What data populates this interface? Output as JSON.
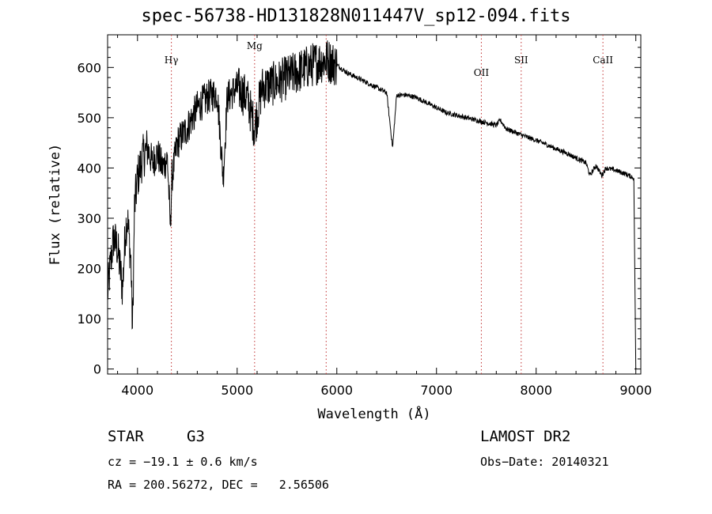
{
  "chart_data": {
    "type": "line",
    "title": "spec-56738-HD131828N011447V_sp12-094.fits",
    "xlabel": "Wavelength (Å)",
    "ylabel": "Flux (relative)",
    "xlim": [
      3700,
      9050
    ],
    "ylim": [
      -10,
      665
    ],
    "xticks": [
      4000,
      5000,
      6000,
      7000,
      8000,
      9000
    ],
    "yticks": [
      0,
      100,
      200,
      300,
      400,
      500,
      600
    ],
    "grid": false,
    "lines": [
      {
        "label": "Hγ",
        "x": 4340
      },
      {
        "label": "Mg",
        "x": 5175
      },
      {
        "label": "",
        "x": 5893
      },
      {
        "label": "OII",
        "x": 7450
      },
      {
        "label": "SII",
        "x": 7850
      },
      {
        "label": "CaII",
        "x": 8670
      }
    ],
    "series": [
      {
        "x": [
          3700,
          3730,
          3760,
          3800,
          3850,
          3880,
          3900,
          3935,
          3950,
          3970,
          4000,
          4050,
          4100,
          4150,
          4200,
          4250,
          4300,
          4330,
          4345,
          4400,
          4500,
          4600,
          4700,
          4800,
          4860,
          4900,
          5000,
          5100,
          5175,
          5250,
          5400,
          5500,
          5600,
          5700,
          5800,
          5900,
          6000,
          6100,
          6200,
          6300,
          6400,
          6500,
          6560,
          6600,
          6700,
          6800,
          6900,
          7000,
          7100,
          7200,
          7300,
          7400,
          7500,
          7600,
          7640,
          7700,
          7800,
          7900,
          8000,
          8100,
          8200,
          8300,
          8400,
          8500,
          8540,
          8600,
          8660,
          8700,
          8800,
          8900,
          8980,
          9000
        ],
        "y": [
          150,
          210,
          260,
          240,
          160,
          280,
          300,
          210,
          70,
          320,
          380,
          420,
          440,
          410,
          430,
          400,
          420,
          280,
          380,
          450,
          480,
          520,
          540,
          550,
          380,
          540,
          560,
          540,
          480,
          560,
          570,
          580,
          590,
          600,
          610,
          615,
          605,
          590,
          580,
          570,
          560,
          550,
          440,
          545,
          545,
          540,
          530,
          520,
          510,
          505,
          500,
          495,
          490,
          485,
          495,
          478,
          470,
          462,
          455,
          447,
          438,
          430,
          420,
          410,
          385,
          405,
          385,
          400,
          395,
          388,
          380,
          0
        ]
      }
    ],
    "annotations": {
      "object": "STAR",
      "subclass": "G3",
      "survey": "LAMOST DR2",
      "cz": "cz = −19.1 ± 0.6 km/s",
      "obs_date": "Obs−Date: 20140321",
      "coords": "RA = 200.56272, DEC =   2.56506"
    }
  }
}
